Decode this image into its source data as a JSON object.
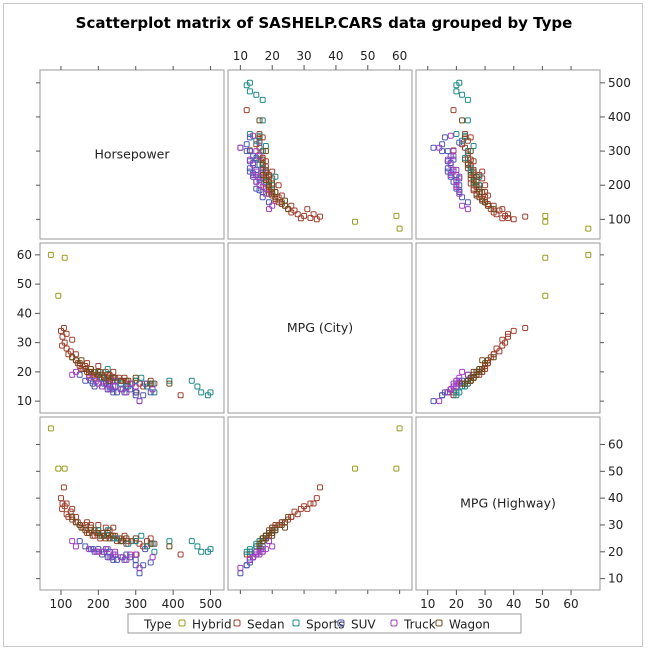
{
  "chart_data": {
    "type": "scatter-matrix",
    "title": "Scatterplot matrix of SASHELP.CARS data grouped by Type",
    "variables": [
      "Horsepower",
      "MPG (City)",
      "MPG (Highway)"
    ],
    "ranges": {
      "Horsepower": [
        60,
        520
      ],
      "MPG (City)": [
        8,
        62
      ],
      "MPG (Highway)": [
        8,
        68
      ]
    },
    "ticks": {
      "Horsepower": [
        100,
        200,
        300,
        400,
        500
      ],
      "MPG (City)": [
        10,
        20,
        30,
        40,
        50,
        60
      ],
      "MPG (Highway)": [
        10,
        20,
        30,
        40,
        50,
        60
      ]
    },
    "legend": {
      "title": "Type",
      "entries": [
        "Hybrid",
        "Sedan",
        "Sports",
        "SUV",
        "Truck",
        "Wagon"
      ],
      "placement": "bottom"
    },
    "colors": {
      "Hybrid": "#9b9b1c",
      "Sedan": "#a0402f",
      "Sports": "#1f8a8a",
      "SUV": "#4a58b0",
      "Truck": "#a33fc2",
      "Wagon": "#6e4b1c"
    },
    "series": [
      {
        "name": "Hybrid",
        "points": [
          [
            73,
            60,
            66
          ],
          [
            93,
            46,
            51
          ],
          [
            110,
            59,
            51
          ]
        ]
      },
      {
        "name": "Sedan",
        "points": [
          [
            103,
            29,
            36
          ],
          [
            104,
            32,
            38
          ],
          [
            108,
            35,
            44
          ],
          [
            115,
            28,
            34
          ],
          [
            110,
            30,
            37
          ],
          [
            120,
            26,
            33
          ],
          [
            130,
            25,
            32
          ],
          [
            140,
            24,
            31
          ],
          [
            150,
            22,
            30
          ],
          [
            155,
            21,
            29
          ],
          [
            160,
            21,
            29
          ],
          [
            165,
            22,
            30
          ],
          [
            170,
            20,
            27
          ],
          [
            175,
            19,
            27
          ],
          [
            180,
            20,
            28
          ],
          [
            185,
            19,
            26
          ],
          [
            190,
            18,
            26
          ],
          [
            195,
            19,
            27
          ],
          [
            200,
            20,
            28
          ],
          [
            205,
            18,
            25
          ],
          [
            210,
            19,
            27
          ],
          [
            215,
            18,
            26
          ],
          [
            220,
            17,
            25
          ],
          [
            225,
            18,
            26
          ],
          [
            230,
            19,
            28
          ],
          [
            235,
            18,
            26
          ],
          [
            240,
            17,
            25
          ],
          [
            245,
            18,
            26
          ],
          [
            250,
            17,
            24
          ],
          [
            255,
            18,
            25
          ],
          [
            260,
            17,
            25
          ],
          [
            265,
            17,
            24
          ],
          [
            270,
            18,
            26
          ],
          [
            275,
            16,
            23
          ],
          [
            280,
            17,
            24
          ],
          [
            290,
            16,
            24
          ],
          [
            300,
            17,
            24
          ],
          [
            310,
            16,
            23
          ],
          [
            320,
            15,
            22
          ],
          [
            330,
            16,
            24
          ],
          [
            340,
            17,
            25
          ],
          [
            350,
            16,
            23
          ],
          [
            302,
            13,
            19
          ],
          [
            420,
            12,
            19
          ],
          [
            100,
            34,
            40
          ],
          [
            130,
            31,
            36
          ],
          [
            126,
            27,
            35
          ],
          [
            140,
            26,
            33
          ],
          [
            115,
            33,
            38
          ],
          [
            145,
            23,
            31
          ],
          [
            200,
            22,
            30
          ],
          [
            220,
            20,
            29
          ],
          [
            240,
            20,
            29
          ],
          [
            170,
            23,
            31
          ],
          [
            180,
            21,
            30
          ]
        ]
      },
      {
        "name": "Sports",
        "points": [
          [
            200,
            20,
            28
          ],
          [
            210,
            18,
            26
          ],
          [
            225,
            21,
            28
          ],
          [
            240,
            18,
            25
          ],
          [
            250,
            17,
            25
          ],
          [
            260,
            16,
            24
          ],
          [
            280,
            15,
            23
          ],
          [
            300,
            17,
            24
          ],
          [
            315,
            18,
            26
          ],
          [
            330,
            15,
            22
          ],
          [
            345,
            16,
            23
          ],
          [
            350,
            13,
            20
          ],
          [
            390,
            17,
            24
          ],
          [
            450,
            17,
            24
          ],
          [
            465,
            15,
            22
          ],
          [
            475,
            13,
            20
          ],
          [
            493,
            12,
            20
          ],
          [
            500,
            13,
            21
          ]
        ]
      },
      {
        "name": "SUV",
        "points": [
          [
            150,
            19,
            24
          ],
          [
            165,
            17,
            22
          ],
          [
            180,
            17,
            21
          ],
          [
            185,
            16,
            21
          ],
          [
            190,
            15,
            20
          ],
          [
            200,
            16,
            21
          ],
          [
            210,
            15,
            19
          ],
          [
            215,
            16,
            20
          ],
          [
            220,
            16,
            21
          ],
          [
            225,
            14,
            18
          ],
          [
            230,
            15,
            20
          ],
          [
            235,
            14,
            18
          ],
          [
            240,
            13,
            17
          ],
          [
            245,
            15,
            19
          ],
          [
            250,
            13,
            17
          ],
          [
            265,
            14,
            18
          ],
          [
            270,
            13,
            17
          ],
          [
            275,
            15,
            19
          ],
          [
            285,
            14,
            18
          ],
          [
            300,
            13,
            17
          ],
          [
            310,
            10,
            12
          ],
          [
            320,
            12,
            15
          ],
          [
            325,
            16,
            21
          ],
          [
            340,
            13,
            16
          ],
          [
            300,
            12,
            15
          ]
        ]
      },
      {
        "name": "Truck",
        "points": [
          [
            130,
            19,
            24
          ],
          [
            140,
            20,
            22
          ],
          [
            175,
            18,
            21
          ],
          [
            195,
            17,
            20
          ],
          [
            200,
            16,
            20
          ],
          [
            210,
            15,
            20
          ],
          [
            225,
            16,
            21
          ],
          [
            230,
            14,
            18
          ],
          [
            240,
            15,
            19
          ],
          [
            245,
            17,
            20
          ],
          [
            260,
            14,
            18
          ],
          [
            275,
            13,
            17
          ],
          [
            285,
            16,
            19
          ],
          [
            300,
            15,
            19
          ],
          [
            310,
            10,
            14
          ],
          [
            345,
            14,
            18
          ]
        ]
      },
      {
        "name": "Wagon",
        "points": [
          [
            130,
            25,
            33
          ],
          [
            140,
            24,
            31
          ],
          [
            150,
            23,
            30
          ],
          [
            155,
            24,
            29
          ],
          [
            165,
            21,
            28
          ],
          [
            175,
            20,
            27
          ],
          [
            180,
            21,
            29
          ],
          [
            190,
            20,
            28
          ],
          [
            200,
            19,
            27
          ],
          [
            205,
            20,
            26
          ],
          [
            215,
            18,
            26
          ],
          [
            225,
            19,
            27
          ],
          [
            230,
            17,
            25
          ],
          [
            240,
            18,
            26
          ],
          [
            260,
            17,
            24
          ],
          [
            275,
            17,
            25
          ],
          [
            300,
            18,
            25
          ],
          [
            340,
            16,
            23
          ],
          [
            390,
            16,
            22
          ]
        ]
      }
    ]
  }
}
